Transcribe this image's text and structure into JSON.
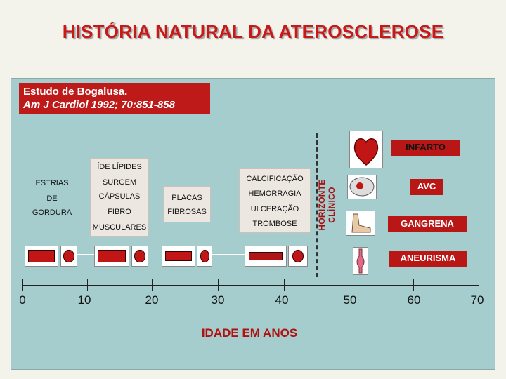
{
  "title": "HISTÓRIA NATURAL DA ATEROSCLEROSE",
  "study": {
    "line1": "Estudo de Bogalusa.",
    "line2": "Am J Cardiol 1992; 70:851-858"
  },
  "stages": [
    {
      "lines": [
        "ESTRIAS",
        "DE",
        "GORDURA"
      ]
    },
    {
      "lines": [
        "ÍDE LÍPIDES",
        "SURGEM",
        "CÁPSULAS",
        "FIBRO",
        "MUSCULARES"
      ]
    },
    {
      "lines": [
        "PLACAS",
        "FIBROSAS"
      ]
    },
    {
      "lines": [
        "CALCIFICAÇÃO",
        "HEMORRAGIA",
        "ULCERAÇÃO",
        "TROMBOSE"
      ]
    }
  ],
  "horizon_label": "HORIZONTE CLÍNICO",
  "outcomes": [
    {
      "label": "INFARTO",
      "icon": "heart-icon"
    },
    {
      "label": "AVC",
      "icon": "brain-icon"
    },
    {
      "label": "GANGRENA",
      "icon": "foot-icon"
    },
    {
      "label": "ANEURISMA",
      "icon": "aorta-icon"
    }
  ],
  "axis": {
    "ticks": [
      "0",
      "10",
      "20",
      "30",
      "40",
      "50",
      "60",
      "70"
    ],
    "title": "IDADE EM ANOS"
  },
  "colors": {
    "accent": "#c81818",
    "panel": "#a5cdcd",
    "stage_box": "#ece7e1"
  }
}
